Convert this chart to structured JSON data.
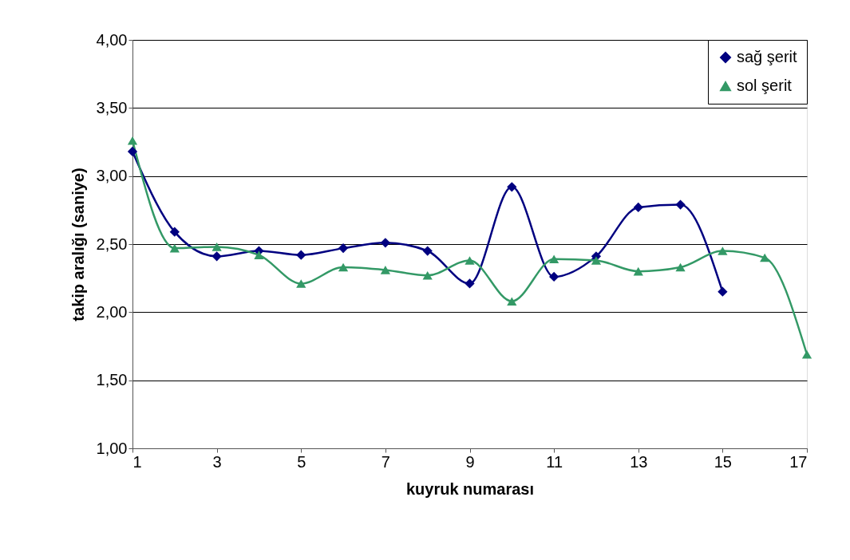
{
  "chart_data": {
    "type": "line",
    "xlabel": "kuyruk numarası",
    "ylabel": "takip aralığı (saniye)",
    "x": [
      1,
      2,
      3,
      4,
      5,
      6,
      7,
      8,
      9,
      10,
      11,
      12,
      13,
      14,
      15,
      16,
      17
    ],
    "series": [
      {
        "name": "sağ şerit",
        "color": "#000080",
        "marker": "diamond",
        "values": [
          3.18,
          2.59,
          2.41,
          2.45,
          2.42,
          2.47,
          2.51,
          2.45,
          2.21,
          2.92,
          2.26,
          2.41,
          2.77,
          2.79,
          2.15,
          null,
          null
        ]
      },
      {
        "name": "sol şerit",
        "color": "#339966",
        "marker": "triangle",
        "values": [
          3.26,
          2.47,
          2.48,
          2.42,
          2.21,
          2.33,
          2.31,
          2.27,
          2.38,
          2.08,
          2.39,
          2.38,
          2.3,
          2.33,
          2.45,
          2.4,
          1.69
        ]
      }
    ],
    "xlim": [
      1,
      17
    ],
    "xticks": [
      1,
      3,
      5,
      7,
      9,
      11,
      13,
      15,
      17
    ],
    "ylim": [
      1,
      4
    ],
    "yticks": [
      {
        "value": 1,
        "label": "1,00"
      },
      {
        "value": 1.5,
        "label": "1,50"
      },
      {
        "value": 2,
        "label": "2,00"
      },
      {
        "value": 2.5,
        "label": "2,50"
      },
      {
        "value": 3,
        "label": "3,00"
      },
      {
        "value": 3.5,
        "label": "3,50"
      },
      {
        "value": 4,
        "label": "4,00"
      }
    ],
    "grid": "y",
    "legend": "top right",
    "line_style": "solid"
  }
}
